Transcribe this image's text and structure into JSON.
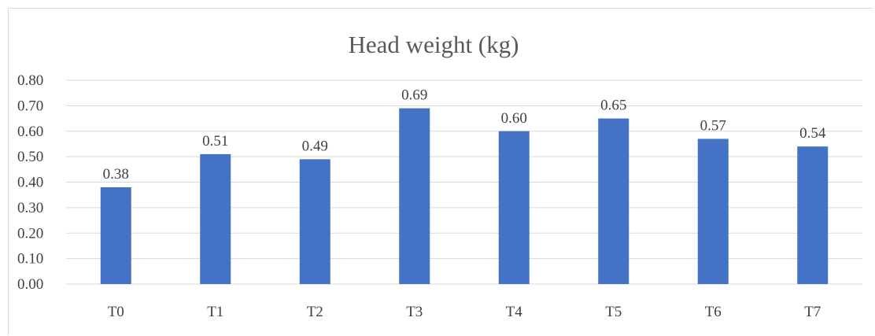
{
  "chart_data": {
    "type": "bar",
    "title": "Head weight (kg)",
    "xlabel": "",
    "ylabel": "",
    "categories": [
      "T0",
      "T1",
      "T2",
      "T3",
      "T4",
      "T5",
      "T6",
      "T7"
    ],
    "values": [
      0.38,
      0.51,
      0.49,
      0.69,
      0.6,
      0.65,
      0.57,
      0.54
    ],
    "data_labels": [
      "0.38",
      "0.51",
      "0.49",
      "0.69",
      "0.60",
      "0.65",
      "0.57",
      "0.54"
    ],
    "ylim": [
      0,
      0.8
    ],
    "yticks": [
      "0.00",
      "0.10",
      "0.20",
      "0.30",
      "0.40",
      "0.50",
      "0.60",
      "0.70",
      "0.80"
    ],
    "grid": true,
    "legend": "none",
    "bar_color": "#4472c4",
    "grid_color": "#d9d9d9"
  }
}
